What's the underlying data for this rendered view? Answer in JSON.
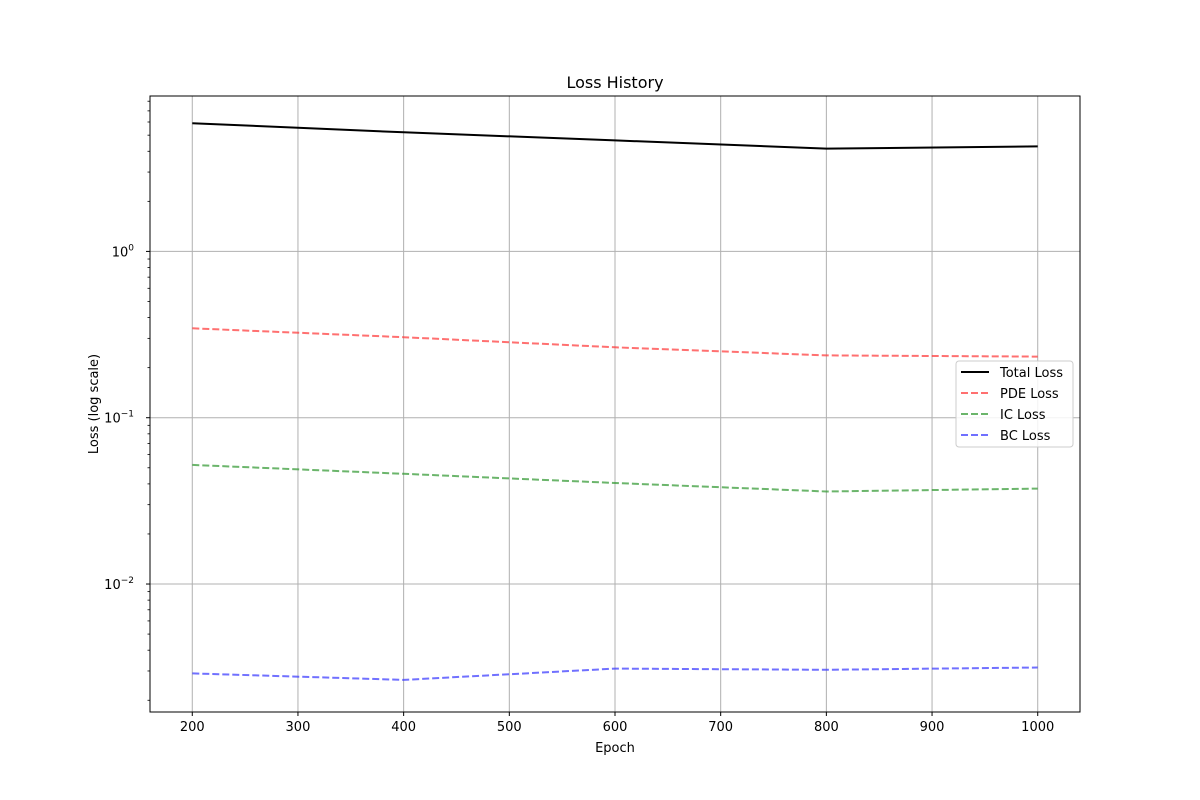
{
  "chart_data": {
    "type": "line",
    "title": "Loss History",
    "xlabel": "Epoch",
    "ylabel": "Loss (log scale)",
    "xlim": [
      160,
      1040
    ],
    "ylim": [
      0.0017,
      8.6
    ],
    "yscale": "log",
    "grid": true,
    "legend_position": "center-right",
    "x_ticks": [
      "200",
      "300",
      "400",
      "500",
      "600",
      "700",
      "800",
      "900",
      "1000"
    ],
    "y_ticks": [
      {
        "base": "10",
        "exp": "0",
        "value": 1
      },
      {
        "base": "10",
        "exp": "−1",
        "value": 0.1
      },
      {
        "base": "10",
        "exp": "−2",
        "value": 0.01
      }
    ],
    "x": [
      200,
      400,
      600,
      800,
      1000
    ],
    "series": [
      {
        "name": "Total Loss",
        "color": "#000000",
        "dashed": false,
        "values": [
          5.9,
          5.2,
          4.65,
          4.15,
          4.28
        ]
      },
      {
        "name": "PDE Loss",
        "color": "#ff4040",
        "dashed": true,
        "values": [
          0.345,
          0.305,
          0.265,
          0.237,
          0.233
        ]
      },
      {
        "name": "IC Loss",
        "color": "#3a9c3a",
        "dashed": true,
        "values": [
          0.052,
          0.046,
          0.0405,
          0.036,
          0.0375
        ]
      },
      {
        "name": "BC Loss",
        "color": "#4040ff",
        "dashed": true,
        "values": [
          0.0029,
          0.00265,
          0.0031,
          0.00305,
          0.00315
        ]
      }
    ]
  }
}
